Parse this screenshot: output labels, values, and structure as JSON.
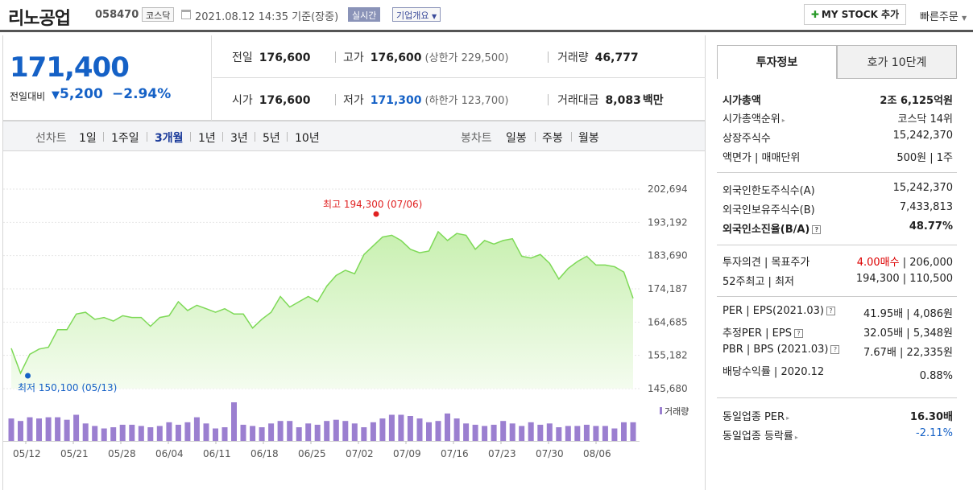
{
  "header": {
    "company_name": "리노공업",
    "stock_code": "058470",
    "market": "코스닥",
    "date": "2021.08.12 14:35",
    "date_suffix": "기준(장중)",
    "realtime": "실시간",
    "company_info": "기업개요",
    "mystock": "MY STOCK 추가",
    "quick_order": "빠른주문"
  },
  "summary": {
    "price": "171,400",
    "change_label": "전일대비",
    "change_value": "5,200",
    "change_pct": "−2.94%",
    "prev_close_label": "전일",
    "prev_close": "176,600",
    "high_label": "고가",
    "high": "176,600",
    "upper_limit": "(상한가 229,500)",
    "volume_label": "거래량",
    "volume": "46,777",
    "open_label": "시가",
    "open": "176,600",
    "low_label": "저가",
    "low": "171,300",
    "lower_limit": "(하한가 123,700)",
    "amount_label": "거래대금",
    "amount": "8,083",
    "amount_unit": "백만"
  },
  "toolbar": {
    "line_label": "선차트",
    "line_periods": [
      "1일",
      "1주일",
      "3개월",
      "1년",
      "3년",
      "5년",
      "10년"
    ],
    "active_period": "3개월",
    "candle_label": "봉차트",
    "candle_periods": [
      "일봉",
      "주봉",
      "월봉"
    ]
  },
  "chart_data": {
    "type": "area",
    "y_ticks": [
      "202,694",
      "193,192",
      "183,690",
      "174,187",
      "164,685",
      "155,182",
      "145,680"
    ],
    "ylim": [
      145680,
      202694
    ],
    "x_labels": [
      "05/12",
      "05/21",
      "05/28",
      "06/04",
      "06/11",
      "06/18",
      "06/25",
      "07/02",
      "07/09",
      "07/16",
      "07/23",
      "07/30",
      "08/06"
    ],
    "max_annotation": "최고 194,300 (07/06)",
    "min_annotation": "최저 150,100 (05/13)",
    "volume_legend": "거래량",
    "colors": {
      "line": "#7ed957",
      "fill_top": "#c8f0b0",
      "fill_bottom": "#f4fcef",
      "volume": "#9b7fd0",
      "max": "#e02020",
      "min": "#1561c6"
    },
    "prices": [
      157200,
      150100,
      155500,
      157000,
      157500,
      162500,
      162500,
      167000,
      167500,
      165500,
      166000,
      165000,
      166500,
      166000,
      166000,
      163500,
      166000,
      166500,
      170500,
      168000,
      169500,
      168500,
      167500,
      168500,
      167000,
      167000,
      163000,
      165500,
      167500,
      172000,
      169000,
      170500,
      172000,
      170500,
      175000,
      178000,
      179500,
      178500,
      184000,
      186500,
      189000,
      189500,
      188000,
      185500,
      184500,
      185000,
      190500,
      188000,
      190000,
      189500,
      185500,
      188000,
      187000,
      188000,
      188500,
      183500,
      183000,
      184000,
      181500,
      177000,
      180000,
      182000,
      183500,
      181000,
      181000,
      180500,
      179000,
      171500
    ],
    "volumes": [
      18,
      16,
      19,
      18,
      19,
      19,
      17,
      21,
      14,
      12,
      10,
      11,
      13,
      13,
      12,
      11,
      12,
      15,
      13,
      15,
      19,
      14,
      10,
      11,
      31,
      13,
      12,
      11,
      14,
      16,
      16,
      11,
      14,
      13,
      16,
      17,
      16,
      14,
      11,
      15,
      18,
      21,
      21,
      20,
      18,
      15,
      16,
      22,
      18,
      14,
      13,
      12,
      13,
      16,
      14,
      12,
      15,
      13,
      14,
      11,
      12,
      12,
      13,
      12,
      12,
      10,
      15,
      15
    ]
  },
  "right_panel": {
    "tab_invest": "투자정보",
    "tab_orderbook": "호가 10단계",
    "market_cap_label": "시가총액",
    "market_cap": "2조 6,125억원",
    "market_cap_rank_label": "시가총액순위",
    "market_cap_rank": "코스닥 14위",
    "listed_shares_label": "상장주식수",
    "listed_shares": "15,242,370",
    "par_label": "액면가 | 매매단위",
    "par": "500원 | 1주",
    "foreign_limit_label": "외국인한도주식수(A)",
    "foreign_limit": "15,242,370",
    "foreign_hold_label": "외국인보유주식수(B)",
    "foreign_hold": "7,433,813",
    "foreign_ratio_label": "외국인소진율(B/A)",
    "foreign_ratio": "48.77%",
    "opinion_label": "투자의견 | 목표주가",
    "opinion": "4.00매수",
    "target": " | 206,000",
    "week52_label": "52주최고 | 최저",
    "week52": "194,300 | 110,500",
    "per_label": "PER | EPS(2021.03)",
    "per": "41.95배 | 4,086원",
    "est_per_label": "추정PER | EPS",
    "est_per": "32.05배 | 5,348원",
    "pbr_label": "PBR | BPS (2021.03)",
    "pbr": "7.67배 | 22,335원",
    "div_label": "배당수익률 | 2020.12",
    "div": "0.88%",
    "sector_per_label": "동일업종 PER",
    "sector_per": "16.30배",
    "sector_change_label": "동일업종 등락률",
    "sector_change": "-2.11%"
  }
}
